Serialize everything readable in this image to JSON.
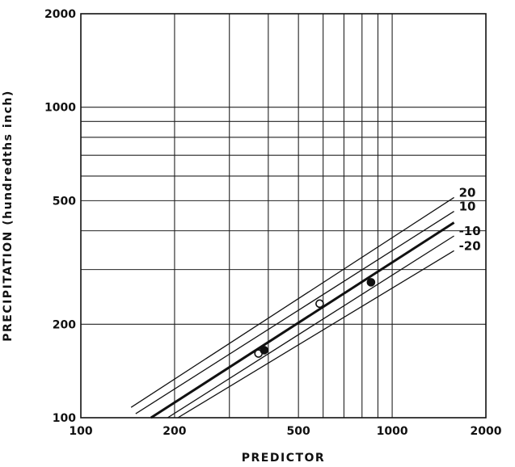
{
  "chart_data": {
    "type": "scatter",
    "xlabel": "PREDICTOR",
    "ylabel": "PRECIPITATION (hundredths inch)",
    "x_scale": "log",
    "y_scale": "log",
    "xlim": [
      100,
      2000
    ],
    "ylim": [
      100,
      2000
    ],
    "x_ticks": [
      100,
      200,
      500,
      1000,
      2000
    ],
    "x_tick_labels": [
      "100",
      "200",
      "500",
      "1000",
      "2000"
    ],
    "y_ticks": [
      100,
      200,
      500,
      1000,
      2000
    ],
    "y_tick_labels": [
      "100",
      "200",
      "500",
      "1000",
      "2000"
    ],
    "x_gridlines": [
      200,
      300,
      400,
      500,
      600,
      700,
      800,
      900,
      1000
    ],
    "y_gridlines": [
      200,
      300,
      400,
      500,
      600,
      700,
      800,
      900,
      1000
    ],
    "grid": true,
    "lines": [
      {
        "label": "20",
        "bold": false,
        "points": [
          [
            145,
            108.0
          ],
          [
            1580,
            512.0
          ]
        ]
      },
      {
        "label": "10",
        "bold": false,
        "points": [
          [
            150,
            103.0
          ],
          [
            1580,
            462.0
          ]
        ]
      },
      {
        "label": "",
        "bold": true,
        "points": [
          [
            168,
            100.0
          ],
          [
            1580,
            425.0
          ]
        ]
      },
      {
        "label": "-10",
        "bold": false,
        "points": [
          [
            190,
            100.0
          ],
          [
            1580,
            385.0
          ]
        ]
      },
      {
        "label": "-20",
        "bold": false,
        "points": [
          [
            205,
            100.0
          ],
          [
            1580,
            345.0
          ]
        ]
      }
    ],
    "points": [
      {
        "x": 372,
        "y": 161,
        "filled": false
      },
      {
        "x": 388,
        "y": 165,
        "filled": true
      },
      {
        "x": 585,
        "y": 233,
        "filled": false
      },
      {
        "x": 855,
        "y": 273,
        "filled": true
      }
    ]
  }
}
